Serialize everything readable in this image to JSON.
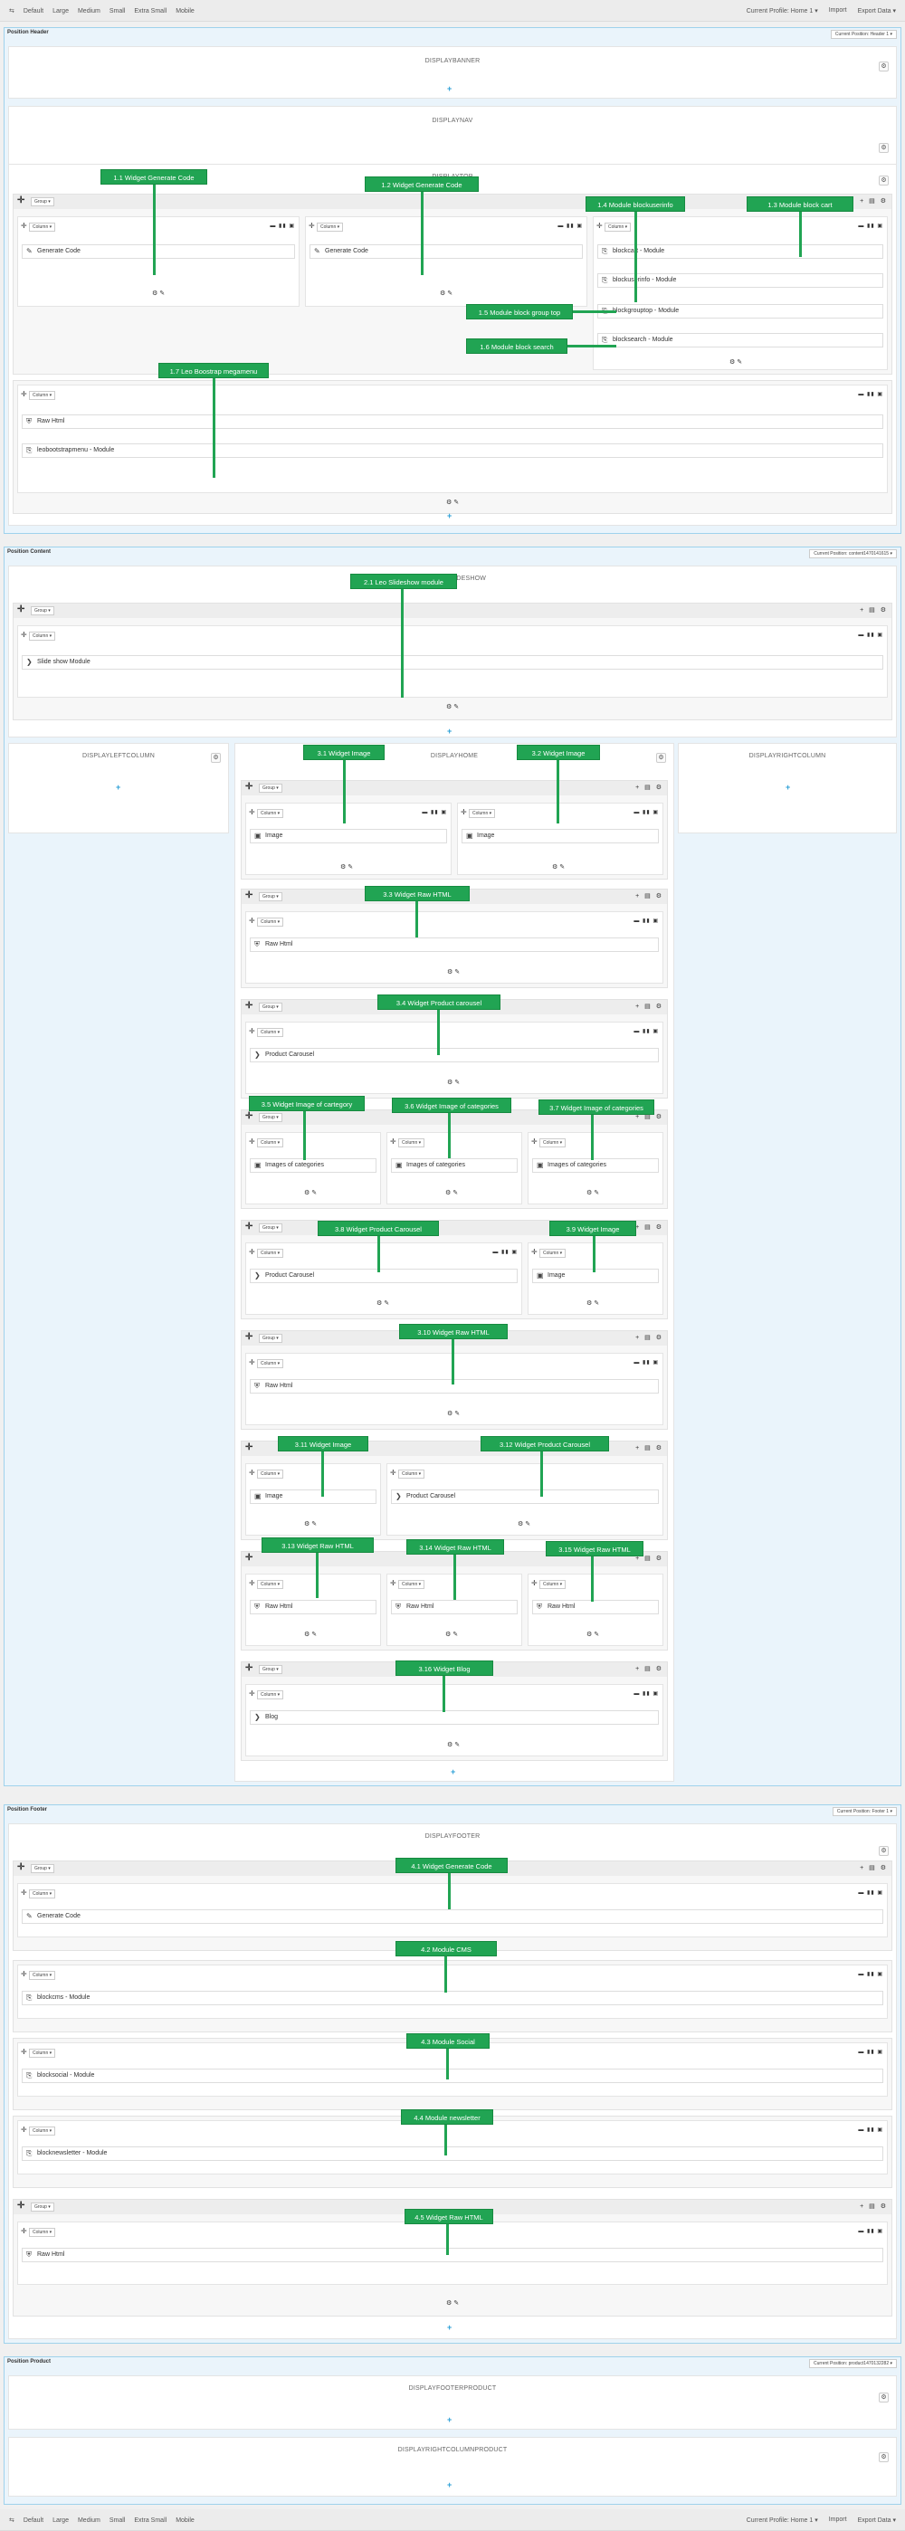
{
  "topbar": {
    "devices": [
      "Default",
      "Large",
      "Medium",
      "Small",
      "Extra Small",
      "Mobile"
    ],
    "profile": "Current Profile: Home 1 ▾",
    "import": "Import",
    "export": "Export Data ▾"
  },
  "header": {
    "title": "Position Header",
    "selector": "Current Position: Header 1 ▾",
    "hook_banner": "DISPLAYBANNER",
    "hook_nav": "DISPLAYNAV",
    "hook_top": "DISPLAYTOP"
  },
  "content": {
    "title": "Position Content",
    "selector": "Current Position: content1470141615 ▾",
    "hook_slider": "DISPLAYSLIDESHOW",
    "hook_left": "DISPLAYLEFTCOLUMN",
    "hook_home": "DISPLAYHOME",
    "hook_right": "DISPLAYRIGHTCOLUMN"
  },
  "footer": {
    "title": "Position Footer",
    "selector": "Current Position: Footer 1 ▾",
    "hook_footer": "DISPLAYFOOTER"
  },
  "product": {
    "title": "Position Product",
    "selector": "Current Position: product1470132282 ▾",
    "hook_footer_product": "DISPLAYFOOTERPRODUCT",
    "hook_right_product": "DISPLAYRIGHTCOLUMNPRODUCT"
  },
  "labels": {
    "group": "Group ▾",
    "column": "Column ▾"
  },
  "widgets": {
    "generate_code": "Generate Code",
    "blockcart": "blockcart - Module",
    "blockuserinfo": "blockuserinfo - Module",
    "blockgrouptop": "blockgrouptop - Module",
    "blocksearch": "blocksearch - Module",
    "raw_html": "Raw Html",
    "megamenu": "leobootstrapmenu - Module",
    "slideshow": "Slide show Module",
    "image": "Image",
    "product_carousel": "Product Carousel",
    "images_categories": "Images of categories",
    "blog": "Blog",
    "blockcms": "blockcms - Module",
    "blocksocial": "blocksocial - Module",
    "blocknewsletter": "blocknewsletter - Module"
  },
  "callouts": {
    "c1_1": "1.1 Widget Generate Code",
    "c1_2": "1.2 Widget Generate Code",
    "c1_3": "1.3 Module block cart",
    "c1_4": "1.4 Module blockuserinfo",
    "c1_5": "1.5 Module block group top",
    "c1_6": "1.6 Module block search",
    "c1_7": "1.7 Leo Boostrap megamenu",
    "c2_1": "2.1 Leo Slideshow module",
    "c3_1": "3.1 Widget Image",
    "c3_2": "3.2 Widget Image",
    "c3_3": "3.3 Widget Raw HTML",
    "c3_4": "3.4 Widget Product carousel",
    "c3_5": "3.5 Widget Image of cartegory",
    "c3_6": "3.6 Widget Image of categories",
    "c3_7": "3.7 Widget Image of categories",
    "c3_8": "3.8 Widget Product Carousel",
    "c3_9": "3.9 Widget Image",
    "c3_10": "3.10 Widget Raw HTML",
    "c3_11": "3.11 Widget Image",
    "c3_12": "3.12 Widget Product Carousel",
    "c3_13": "3.13 Widget Raw HTML",
    "c3_14": "3.14 Widget Raw HTML",
    "c3_15": "3.15 Widget Raw HTML",
    "c3_16": "3.16 Widget Blog",
    "c4_1": "4.1 Widget Generate Code",
    "c4_2": "4.2 Module CMS",
    "c4_3": "4.3 Module Social",
    "c4_4": "4.4 Module newsletter",
    "c4_5": "4.5 Widget Raw HTML"
  },
  "colors": {
    "callout": "#21a453",
    "position_border": "#9fd2ec",
    "plus": "#2a9fd6"
  }
}
